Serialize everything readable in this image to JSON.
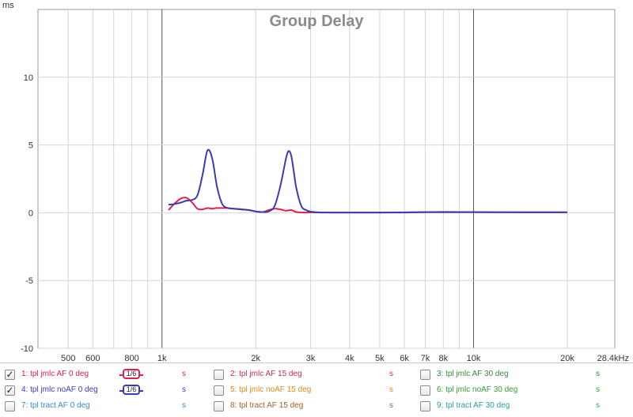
{
  "chart_data": {
    "type": "line",
    "title": "Group Delay",
    "ylabel": "ms",
    "x_scale": "log",
    "xlim": [
      400,
      28400
    ],
    "ylim": [
      -10,
      15
    ],
    "x_tick_labels": [
      {
        "v": 500,
        "label": "500"
      },
      {
        "v": 600,
        "label": "600"
      },
      {
        "v": 800,
        "label": "800"
      },
      {
        "v": 1000,
        "label": "1k"
      },
      {
        "v": 2000,
        "label": "2k"
      },
      {
        "v": 3000,
        "label": "3k"
      },
      {
        "v": 4000,
        "label": "4k"
      },
      {
        "v": 5000,
        "label": "5k"
      },
      {
        "v": 6000,
        "label": "6k"
      },
      {
        "v": 7000,
        "label": "7k"
      },
      {
        "v": 8000,
        "label": "8k"
      },
      {
        "v": 10000,
        "label": "10k"
      },
      {
        "v": 20000,
        "label": "20k"
      },
      {
        "v": 28400,
        "label": "28.4kHz"
      }
    ],
    "y_tick_labels": [
      {
        "v": 10,
        "label": "10"
      },
      {
        "v": 5,
        "label": "5"
      },
      {
        "v": 0,
        "label": "0"
      },
      {
        "v": -5,
        "label": "-5"
      },
      {
        "v": -10,
        "label": "-10"
      }
    ],
    "grid": true,
    "series": [
      {
        "color": "#e0204a",
        "x": [
          1050,
          1100,
          1150,
          1200,
          1250,
          1300,
          1350,
          1400,
          1450,
          1500,
          1600,
          1700,
          1800,
          1900,
          2000,
          2100,
          2200,
          2300,
          2400,
          2500,
          2600,
          2700,
          2800,
          2900,
          3000,
          3200,
          3500,
          4000,
          5000,
          6000,
          7000,
          8000,
          10000,
          12000,
          15000,
          20000
        ],
        "y": [
          0.2,
          0.7,
          1.05,
          1.1,
          0.75,
          0.3,
          0.25,
          0.35,
          0.3,
          0.35,
          0.35,
          0.3,
          0.25,
          0.2,
          0.1,
          0.05,
          0.2,
          0.3,
          0.25,
          0.15,
          0.2,
          0.05,
          0.03,
          0.02,
          0.03,
          0.02,
          0.02,
          0.02,
          0.02,
          0.02,
          0.04,
          0.04,
          0.04,
          0.04,
          0.03,
          0.03
        ]
      },
      {
        "color": "#3b3bb3",
        "x": [
          1050,
          1100,
          1150,
          1200,
          1250,
          1300,
          1350,
          1400,
          1450,
          1500,
          1550,
          1600,
          1700,
          1800,
          1900,
          2000,
          2100,
          2200,
          2300,
          2400,
          2500,
          2550,
          2600,
          2650,
          2700,
          2800,
          2900,
          3000,
          3200,
          3500,
          4000,
          5000,
          6000,
          7000,
          8000,
          10000,
          12000,
          15000,
          20000
        ],
        "y": [
          0.6,
          0.65,
          0.75,
          0.9,
          0.95,
          1.3,
          2.8,
          4.6,
          4.0,
          2.0,
          0.8,
          0.4,
          0.3,
          0.25,
          0.2,
          0.1,
          0.05,
          0.1,
          0.5,
          2.0,
          4.0,
          4.55,
          4.2,
          3.0,
          1.8,
          0.5,
          0.2,
          0.08,
          0.03,
          0.02,
          0.02,
          0.02,
          0.03,
          0.05,
          0.06,
          0.05,
          0.04,
          0.04,
          0.04
        ]
      }
    ]
  },
  "legend": [
    {
      "checked": true,
      "label": "1: tpl jmlc AF 0 deg",
      "color": "#e0204a",
      "unit": "s",
      "smoothing": "1/6",
      "col": 0,
      "row": 0
    },
    {
      "checked": false,
      "label": "2: tpl jmlc AF 15 deg",
      "color": "#c0304a",
      "unit": "s",
      "smoothing": "",
      "col": 1,
      "row": 0
    },
    {
      "checked": false,
      "label": "3: tpl jmlc AF 30 deg",
      "color": "#3a8a3a",
      "unit": "s",
      "smoothing": "",
      "col": 2,
      "row": 0
    },
    {
      "checked": true,
      "label": "4: tpl jmlc noAF 0 deg",
      "color": "#3b3bb3",
      "unit": "s",
      "smoothing": "1/6",
      "col": 0,
      "row": 1
    },
    {
      "checked": false,
      "label": "5: tpl jmlc noAF 15 deg",
      "color": "#e08a20",
      "unit": "s",
      "smoothing": "",
      "col": 1,
      "row": 1
    },
    {
      "checked": false,
      "label": "6: tpl jmlc noAF 30 deg",
      "color": "#3a9a3a",
      "unit": "s",
      "smoothing": "",
      "col": 2,
      "row": 1
    },
    {
      "checked": false,
      "label": "7: tpl tract AF 0 deg",
      "color": "#3a8ac8",
      "unit": "s",
      "smoothing": "",
      "col": 0,
      "row": 2
    },
    {
      "checked": false,
      "label": "8: tpl tract AF 15 deg",
      "color": "#a0602a",
      "unit": "s",
      "smoothing": "",
      "col": 1,
      "row": 2
    },
    {
      "checked": false,
      "label": "9: tpl tract AF 30 deg",
      "color": "#2aa0a0",
      "unit": "s",
      "smoothing": "",
      "col": 2,
      "row": 2
    }
  ]
}
